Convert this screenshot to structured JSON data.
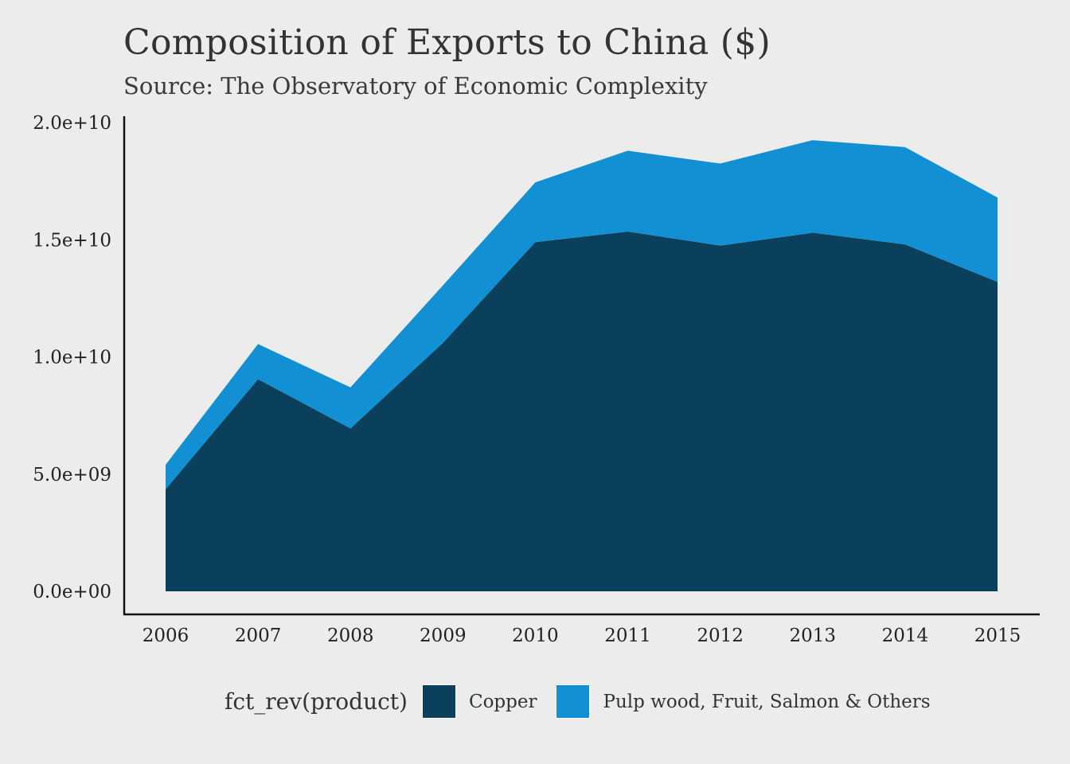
{
  "chart_data": {
    "type": "area",
    "stacked": true,
    "title": "Composition of Exports to China ($)",
    "subtitle": "Source: The Observatory of Economic Complexity",
    "xlabel": "",
    "ylabel": "",
    "x": [
      2006,
      2007,
      2008,
      2009,
      2010,
      2011,
      2012,
      2013,
      2014,
      2015
    ],
    "x_tick_labels": [
      "2006",
      "2007",
      "2008",
      "2009",
      "2010",
      "2011",
      "2012",
      "2013",
      "2014",
      "2015"
    ],
    "ylim": [
      0,
      20000000000
    ],
    "y_ticks": [
      0,
      5000000000,
      10000000000,
      15000000000,
      20000000000
    ],
    "y_tick_labels": [
      "0.0e+00",
      "5.0e+09",
      "1.0e+10",
      "1.5e+10",
      "2.0e+10"
    ],
    "grid": false,
    "legend_position": "bottom",
    "legend_title": "fct_rev(product)",
    "series": [
      {
        "name": "Copper",
        "color": "#0a405b",
        "values": [
          4350000000,
          9050000000,
          6950000000,
          10600000000,
          14900000000,
          15350000000,
          14750000000,
          15300000000,
          14800000000,
          13200000000
        ]
      },
      {
        "name": "Pulp wood, Fruit, Salmon & Others",
        "color": "#1390d3",
        "values": [
          1050000000,
          1500000000,
          1750000000,
          2450000000,
          2550000000,
          3450000000,
          3500000000,
          3950000000,
          4150000000,
          3600000000
        ]
      }
    ]
  }
}
